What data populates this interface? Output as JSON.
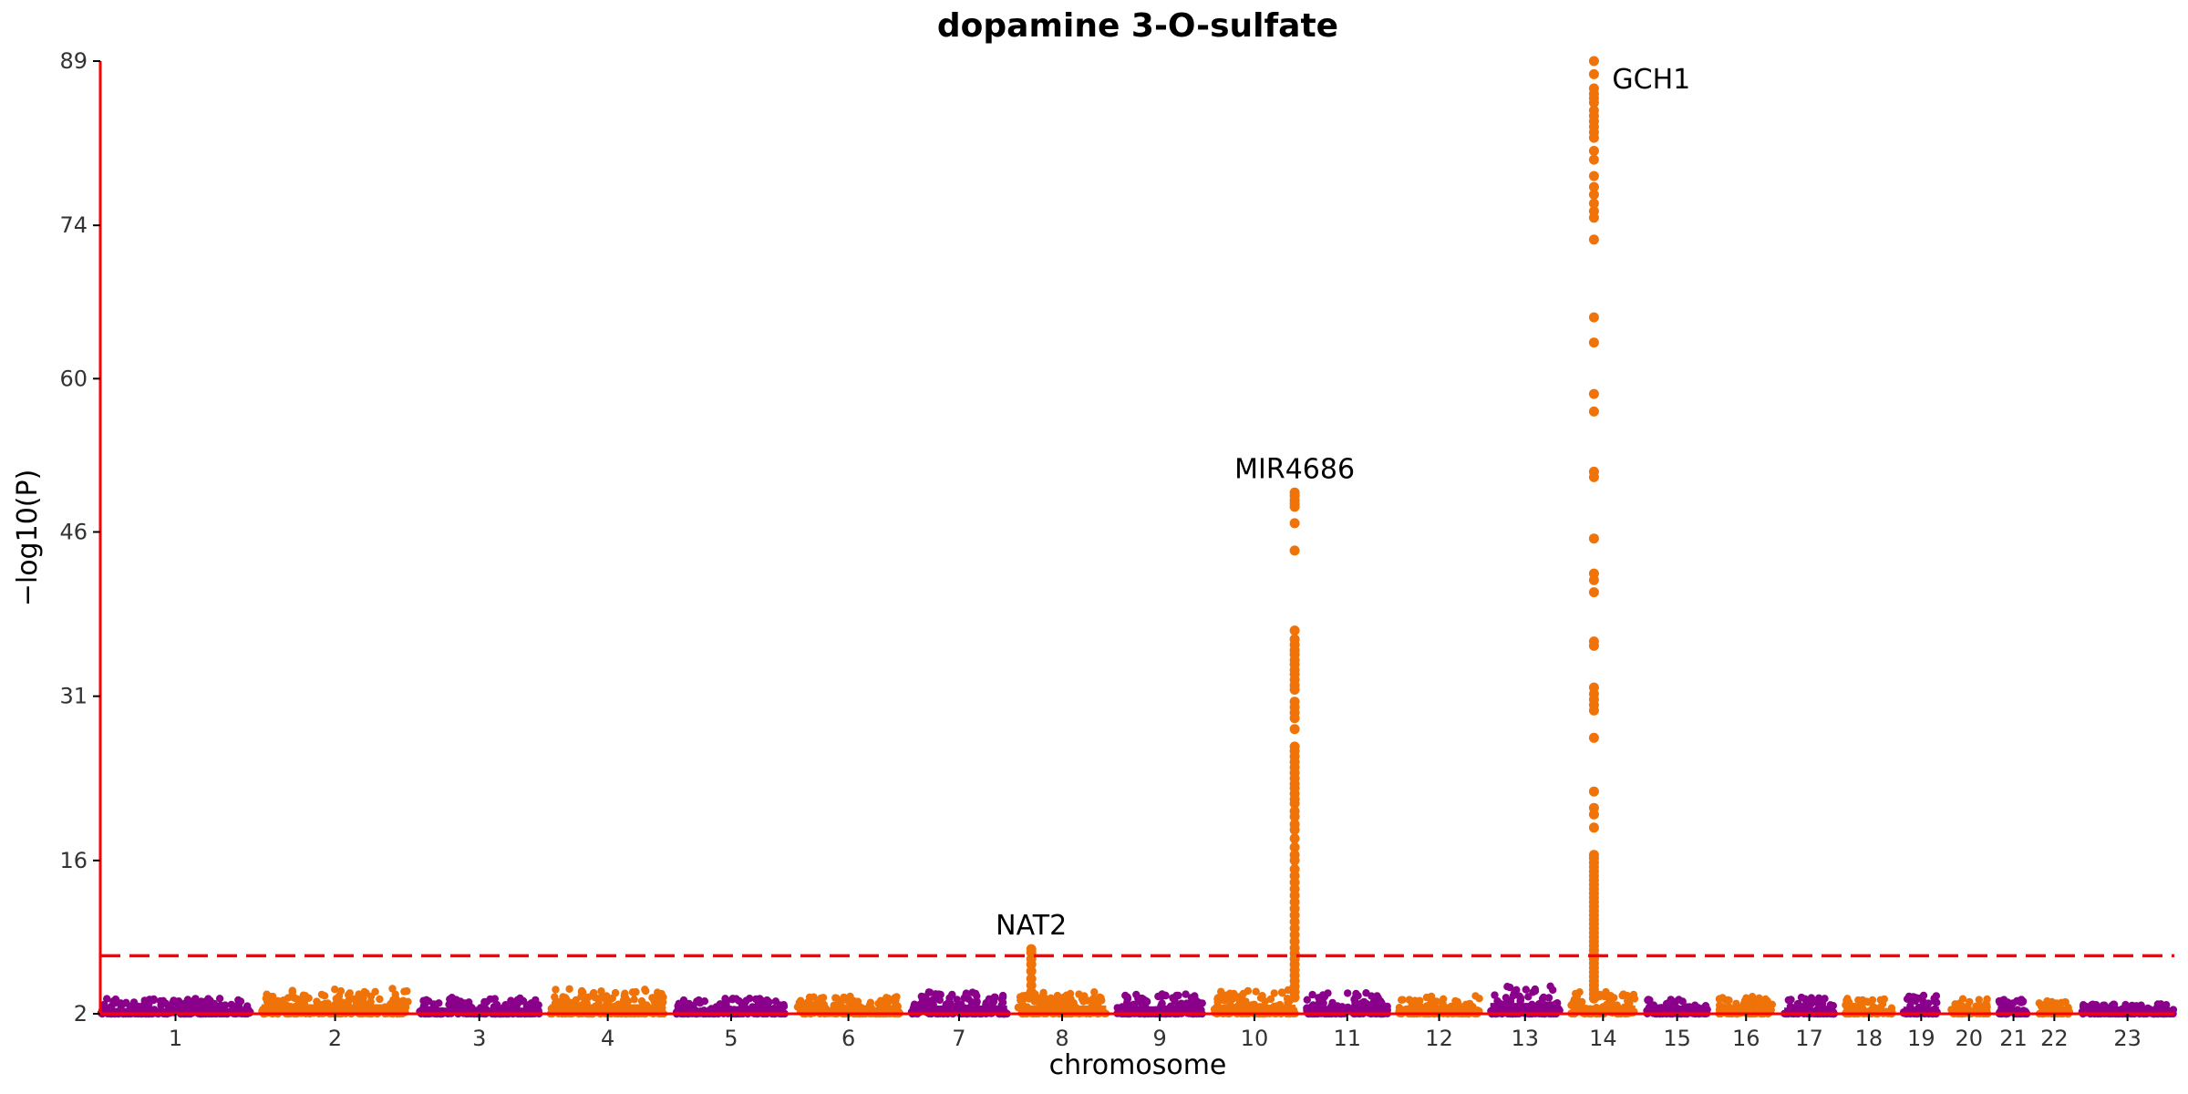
{
  "chart_data": {
    "type": "scatter",
    "title": "dopamine 3-O-sulfate",
    "xlabel": "chromosome",
    "ylabel": "−log10(P)",
    "ylim": [
      2,
      89
    ],
    "yticks": [
      2,
      16,
      31,
      46,
      60,
      74,
      89
    ],
    "significance_threshold": 7.3,
    "colors": {
      "odd": "#8b008b",
      "even": "#ef7308",
      "threshold": "#ff0000",
      "axis": "#ff0000"
    },
    "chromosomes": [
      {
        "name": "1",
        "length": 249,
        "max": 3.4
      },
      {
        "name": "2",
        "length": 243,
        "max": 4.3
      },
      {
        "name": "3",
        "length": 198,
        "max": 3.5
      },
      {
        "name": "4",
        "length": 191,
        "max": 4.3
      },
      {
        "name": "5",
        "length": 181,
        "max": 3.4
      },
      {
        "name": "6",
        "length": 171,
        "max": 3.6
      },
      {
        "name": "7",
        "length": 159,
        "max": 4.0
      },
      {
        "name": "8",
        "length": 146,
        "max": 4.0
      },
      {
        "name": "9",
        "length": 141,
        "max": 3.8
      },
      {
        "name": "10",
        "length": 136,
        "max": 4.2
      },
      {
        "name": "11",
        "length": 135,
        "max": 3.9
      },
      {
        "name": "12",
        "length": 133,
        "max": 3.7
      },
      {
        "name": "13",
        "length": 115,
        "max": 4.6
      },
      {
        "name": "14",
        "length": 107,
        "max": 4.0
      },
      {
        "name": "15",
        "length": 102,
        "max": 3.3
      },
      {
        "name": "16",
        "length": 90,
        "max": 3.6
      },
      {
        "name": "17",
        "length": 83,
        "max": 3.5
      },
      {
        "name": "18",
        "length": 78,
        "max": 3.4
      },
      {
        "name": "19",
        "length": 59,
        "max": 3.7
      },
      {
        "name": "20",
        "length": 63,
        "max": 3.4
      },
      {
        "name": "21",
        "length": 48,
        "max": 3.4
      },
      {
        "name": "22",
        "length": 51,
        "max": 3.2
      },
      {
        "name": "23",
        "length": 155,
        "max": 2.9
      }
    ],
    "peaks": [
      {
        "chr": "8",
        "pos": 0.15,
        "values": [
          7.9,
          7.6,
          7.0,
          6.5,
          5.9,
          5.2,
          4.6,
          4.0,
          3.5
        ]
      },
      {
        "chr": "10",
        "pos": 0.99,
        "values": [
          49.6,
          49.3,
          48.9,
          48.6,
          48.3,
          46.8,
          44.3,
          37.0,
          36.2,
          35.7,
          35.2,
          34.8,
          34.3,
          33.9,
          33.4,
          33.0,
          32.5,
          32.0,
          31.6,
          30.5,
          30.0,
          29.5,
          29.0,
          28.0,
          26.4,
          26.0,
          25.5,
          25.0,
          24.5,
          24.0,
          23.5,
          23.0,
          22.6,
          22.1,
          21.6,
          21.2,
          20.5,
          20.0,
          19.3,
          18.8,
          18.0,
          17.2,
          16.5,
          16.0,
          15.2,
          14.6,
          14.0,
          13.4,
          12.8,
          12.2,
          11.6,
          11.0,
          10.4,
          9.8,
          9.2,
          8.6,
          8.0,
          7.5,
          7.0,
          6.5,
          6.0,
          5.5,
          5.0,
          4.5,
          4.0,
          3.5
        ]
      },
      {
        "chr": "14",
        "pos": 0.36,
        "values": [
          89.0,
          87.8,
          86.5,
          86.0,
          85.6,
          85.2,
          84.5,
          84.0,
          83.5,
          83.0,
          82.5,
          82.0,
          80.8,
          80.0,
          78.5,
          77.5,
          76.8,
          76.0,
          75.3,
          74.7,
          72.7,
          65.6,
          63.3,
          58.6,
          57.0,
          51.5,
          51.0,
          45.4,
          42.2,
          41.6,
          40.5,
          36.0,
          35.6,
          31.8,
          31.2,
          30.7,
          30.2,
          29.7,
          27.2,
          22.3,
          20.8,
          20.2,
          19.0,
          16.5,
          16.2,
          15.8,
          15.4,
          15.0,
          14.6,
          14.2,
          13.8,
          13.4,
          13.0,
          12.6,
          12.2,
          11.8,
          11.4,
          11.0,
          10.6,
          10.2,
          9.8,
          9.4,
          9.0,
          8.6,
          8.2,
          7.8,
          7.4,
          7.0,
          6.6,
          6.2,
          5.8,
          5.4,
          5.0,
          4.6,
          4.2,
          3.8,
          3.4
        ]
      }
    ],
    "annotations": [
      {
        "gene": "NAT2",
        "chr": "8",
        "pos": 0.15,
        "y": 7.9
      },
      {
        "gene": "MIR4686",
        "chr": "10",
        "pos": 0.99,
        "y": 49.6
      },
      {
        "gene": "GCH1",
        "chr": "14",
        "pos": 0.36,
        "y": 89.0
      }
    ]
  }
}
